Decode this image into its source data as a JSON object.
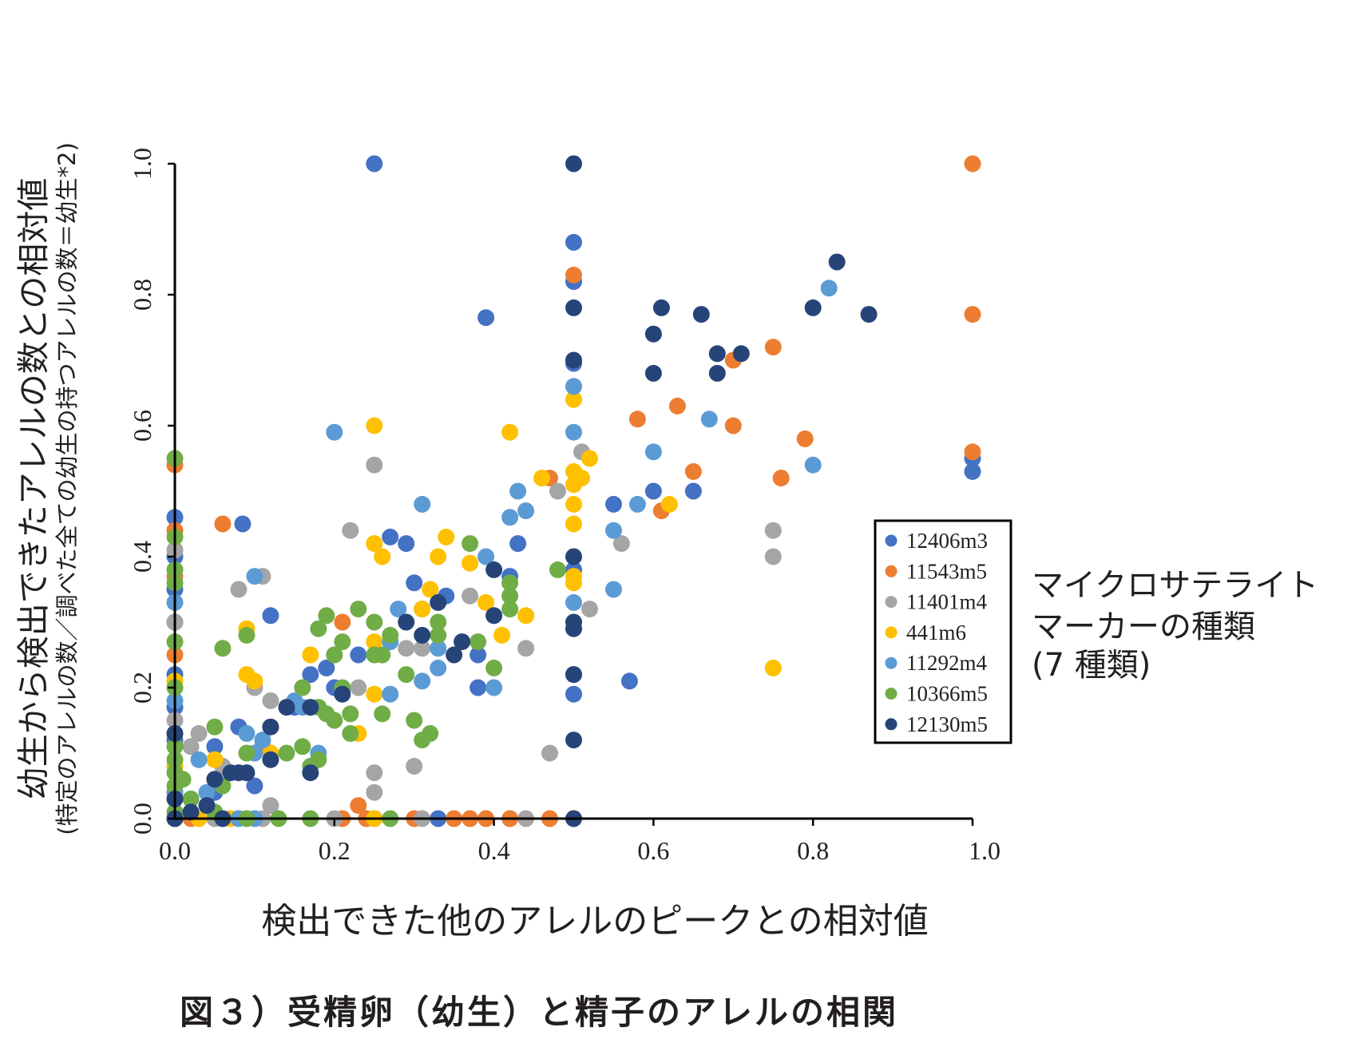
{
  "caption": "図３）受精卵（幼生）と精子のアレルの相関",
  "legend_title": [
    "マイクロサテライト",
    "マーカーの種類",
    "(7 種類)"
  ],
  "chart_data": {
    "type": "scatter",
    "xlabel": "検出できた他のアレルのピークとの相対値",
    "ylabel": "幼生から検出できたアレルの数との相対値",
    "ylabel_sub": "(特定のアレルの数／調べた全ての幼生の持つアレルの数＝幼生*2)",
    "xlim": [
      0.0,
      1.0
    ],
    "ylim": [
      0.0,
      1.0
    ],
    "xticks": [
      "0.0",
      "0.2",
      "0.4",
      "0.6",
      "0.8",
      "1.0"
    ],
    "yticks": [
      "0.0",
      "0.2",
      "0.4",
      "0.6",
      "0.8",
      "1.0"
    ],
    "grid": false,
    "legend_position": "right",
    "series": [
      {
        "name": "12406m3",
        "color": "#4472c4",
        "points": [
          [
            0.25,
            1.0
          ],
          [
            0.39,
            0.765
          ],
          [
            0.5,
            0.88
          ],
          [
            0.5,
            0.82
          ],
          [
            0.5,
            0.695
          ],
          [
            1.0,
            0.55
          ],
          [
            1.0,
            0.53
          ],
          [
            0.0,
            0.46
          ],
          [
            0.0,
            0.4
          ],
          [
            0.0,
            0.35
          ],
          [
            0.0,
            0.3
          ],
          [
            0.0,
            0.22
          ],
          [
            0.0,
            0.17
          ],
          [
            0.0,
            0.12
          ],
          [
            0.0,
            0.08
          ],
          [
            0.0,
            0.0
          ],
          [
            0.085,
            0.45
          ],
          [
            0.12,
            0.31
          ],
          [
            0.05,
            0.11
          ],
          [
            0.08,
            0.14
          ],
          [
            0.1,
            0.05
          ],
          [
            0.19,
            0.23
          ],
          [
            0.2,
            0.2
          ],
          [
            0.23,
            0.25
          ],
          [
            0.27,
            0.43
          ],
          [
            0.29,
            0.42
          ],
          [
            0.3,
            0.36
          ],
          [
            0.31,
            0.32
          ],
          [
            0.34,
            0.34
          ],
          [
            0.38,
            0.2
          ],
          [
            0.38,
            0.25
          ],
          [
            0.42,
            0.37
          ],
          [
            0.43,
            0.42
          ],
          [
            0.5,
            0.38
          ],
          [
            0.5,
            0.22
          ],
          [
            0.5,
            0.19
          ],
          [
            0.55,
            0.48
          ],
          [
            0.57,
            0.21
          ],
          [
            0.6,
            0.5
          ],
          [
            0.65,
            0.5
          ],
          [
            0.25,
            0.0
          ],
          [
            0.33,
            0.0
          ],
          [
            0.05,
            0.04
          ],
          [
            0.15,
            0.17
          ],
          [
            0.17,
            0.22
          ]
        ]
      },
      {
        "name": "11543m5",
        "color": "#ed7d31",
        "points": [
          [
            1.0,
            1.0
          ],
          [
            0.5,
            0.83
          ],
          [
            1.0,
            0.77
          ],
          [
            0.75,
            0.72
          ],
          [
            0.7,
            0.7
          ],
          [
            0.63,
            0.63
          ],
          [
            0.58,
            0.61
          ],
          [
            0.7,
            0.6
          ],
          [
            0.79,
            0.58
          ],
          [
            1.0,
            0.56
          ],
          [
            0.65,
            0.53
          ],
          [
            0.76,
            0.52
          ],
          [
            0.47,
            0.52
          ],
          [
            0.61,
            0.47
          ],
          [
            0.0,
            0.54
          ],
          [
            0.0,
            0.44
          ],
          [
            0.0,
            0.41
          ],
          [
            0.0,
            0.37
          ],
          [
            0.0,
            0.3
          ],
          [
            0.0,
            0.25
          ],
          [
            0.06,
            0.45
          ],
          [
            0.21,
            0.3
          ],
          [
            0.0,
            0.0
          ],
          [
            0.02,
            0.0
          ],
          [
            0.21,
            0.0
          ],
          [
            0.24,
            0.0
          ],
          [
            0.3,
            0.0
          ],
          [
            0.35,
            0.0
          ],
          [
            0.37,
            0.0
          ],
          [
            0.39,
            0.0
          ],
          [
            0.42,
            0.0
          ],
          [
            0.47,
            0.0
          ],
          [
            0.5,
            0.0
          ],
          [
            0.05,
            0.06
          ],
          [
            0.11,
            0.11
          ],
          [
            0.23,
            0.02
          ]
        ]
      },
      {
        "name": "11401m4",
        "color": "#a5a5a5",
        "points": [
          [
            0.25,
            0.54
          ],
          [
            0.51,
            0.56
          ],
          [
            0.48,
            0.5
          ],
          [
            0.56,
            0.42
          ],
          [
            0.75,
            0.44
          ],
          [
            0.75,
            0.4
          ],
          [
            0.52,
            0.32
          ],
          [
            0.44,
            0.26
          ],
          [
            0.37,
            0.34
          ],
          [
            0.29,
            0.26
          ],
          [
            0.31,
            0.26
          ],
          [
            0.22,
            0.44
          ],
          [
            0.08,
            0.35
          ],
          [
            0.11,
            0.37
          ],
          [
            0.1,
            0.2
          ],
          [
            0.12,
            0.18
          ],
          [
            0.03,
            0.13
          ],
          [
            0.02,
            0.11
          ],
          [
            0.05,
            0.09
          ],
          [
            0.23,
            0.2
          ],
          [
            0.25,
            0.07
          ],
          [
            0.25,
            0.04
          ],
          [
            0.3,
            0.08
          ],
          [
            0.47,
            0.1
          ],
          [
            0.0,
            0.41
          ],
          [
            0.0,
            0.3
          ],
          [
            0.0,
            0.15
          ],
          [
            0.0,
            0.0
          ],
          [
            0.05,
            0.0
          ],
          [
            0.11,
            0.0
          ],
          [
            0.2,
            0.0
          ],
          [
            0.31,
            0.0
          ],
          [
            0.44,
            0.0
          ],
          [
            0.12,
            0.02
          ],
          [
            0.06,
            0.08
          ]
        ]
      },
      {
        "name": "441m6",
        "color": "#ffc000",
        "points": [
          [
            0.25,
            0.6
          ],
          [
            0.42,
            0.59
          ],
          [
            0.5,
            0.64
          ],
          [
            0.5,
            0.53
          ],
          [
            0.5,
            0.51
          ],
          [
            0.5,
            0.48
          ],
          [
            0.5,
            0.45
          ],
          [
            0.5,
            0.37
          ],
          [
            0.5,
            0.36
          ],
          [
            0.52,
            0.55
          ],
          [
            0.51,
            0.52
          ],
          [
            0.62,
            0.48
          ],
          [
            0.46,
            0.52
          ],
          [
            0.34,
            0.43
          ],
          [
            0.33,
            0.4
          ],
          [
            0.37,
            0.39
          ],
          [
            0.32,
            0.35
          ],
          [
            0.25,
            0.42
          ],
          [
            0.26,
            0.4
          ],
          [
            0.39,
            0.33
          ],
          [
            0.41,
            0.28
          ],
          [
            0.44,
            0.31
          ],
          [
            0.75,
            0.23
          ],
          [
            0.17,
            0.25
          ],
          [
            0.09,
            0.29
          ],
          [
            0.09,
            0.22
          ],
          [
            0.1,
            0.21
          ],
          [
            0.23,
            0.13
          ],
          [
            0.25,
            0.19
          ],
          [
            0.12,
            0.1
          ],
          [
            0.05,
            0.09
          ],
          [
            0.0,
            0.21
          ],
          [
            0.0,
            0.13
          ],
          [
            0.0,
            0.08
          ],
          [
            0.0,
            0.04
          ],
          [
            0.0,
            0.0
          ],
          [
            0.03,
            0.0
          ],
          [
            0.07,
            0.0
          ],
          [
            0.25,
            0.0
          ],
          [
            0.31,
            0.32
          ],
          [
            0.25,
            0.27
          ]
        ]
      },
      {
        "name": "11292m4",
        "color": "#5b9bd5",
        "points": [
          [
            0.2,
            0.59
          ],
          [
            0.5,
            0.66
          ],
          [
            0.5,
            0.59
          ],
          [
            0.82,
            0.81
          ],
          [
            0.67,
            0.61
          ],
          [
            0.8,
            0.54
          ],
          [
            0.6,
            0.56
          ],
          [
            0.55,
            0.44
          ],
          [
            0.58,
            0.48
          ],
          [
            0.55,
            0.35
          ],
          [
            0.5,
            0.33
          ],
          [
            0.42,
            0.46
          ],
          [
            0.44,
            0.47
          ],
          [
            0.43,
            0.5
          ],
          [
            0.31,
            0.48
          ],
          [
            0.4,
            0.2
          ],
          [
            0.39,
            0.4
          ],
          [
            0.27,
            0.27
          ],
          [
            0.27,
            0.19
          ],
          [
            0.31,
            0.21
          ],
          [
            0.33,
            0.23
          ],
          [
            0.28,
            0.32
          ],
          [
            0.2,
            0.25
          ],
          [
            0.16,
            0.17
          ],
          [
            0.15,
            0.18
          ],
          [
            0.1,
            0.37
          ],
          [
            0.11,
            0.12
          ],
          [
            0.1,
            0.1
          ],
          [
            0.09,
            0.13
          ],
          [
            0.03,
            0.09
          ],
          [
            0.02,
            0.03
          ],
          [
            0.0,
            0.33
          ],
          [
            0.0,
            0.18
          ],
          [
            0.0,
            0.04
          ],
          [
            0.0,
            0.0
          ],
          [
            0.04,
            0.04
          ],
          [
            0.08,
            0.0
          ],
          [
            0.1,
            0.0
          ],
          [
            0.18,
            0.1
          ],
          [
            0.33,
            0.26
          ]
        ]
      },
      {
        "name": "10366m5",
        "color": "#70ad47",
        "points": [
          [
            0.0,
            0.55
          ],
          [
            0.0,
            0.43
          ],
          [
            0.0,
            0.38
          ],
          [
            0.0,
            0.36
          ],
          [
            0.0,
            0.27
          ],
          [
            0.0,
            0.2
          ],
          [
            0.0,
            0.11
          ],
          [
            0.0,
            0.07
          ],
          [
            0.0,
            0.05
          ],
          [
            0.0,
            0.01
          ],
          [
            0.0,
            0.0
          ],
          [
            0.48,
            0.38
          ],
          [
            0.37,
            0.42
          ],
          [
            0.42,
            0.32
          ],
          [
            0.38,
            0.27
          ],
          [
            0.4,
            0.23
          ],
          [
            0.33,
            0.3
          ],
          [
            0.33,
            0.28
          ],
          [
            0.29,
            0.22
          ],
          [
            0.25,
            0.3
          ],
          [
            0.27,
            0.28
          ],
          [
            0.25,
            0.25
          ],
          [
            0.23,
            0.32
          ],
          [
            0.19,
            0.31
          ],
          [
            0.2,
            0.25
          ],
          [
            0.18,
            0.29
          ],
          [
            0.16,
            0.2
          ],
          [
            0.18,
            0.17
          ],
          [
            0.19,
            0.16
          ],
          [
            0.21,
            0.2
          ],
          [
            0.22,
            0.16
          ],
          [
            0.2,
            0.15
          ],
          [
            0.22,
            0.13
          ],
          [
            0.26,
            0.16
          ],
          [
            0.3,
            0.15
          ],
          [
            0.32,
            0.13
          ],
          [
            0.31,
            0.12
          ],
          [
            0.14,
            0.1
          ],
          [
            0.16,
            0.11
          ],
          [
            0.17,
            0.08
          ],
          [
            0.18,
            0.09
          ],
          [
            0.09,
            0.28
          ],
          [
            0.06,
            0.26
          ],
          [
            0.05,
            0.14
          ],
          [
            0.06,
            0.05
          ],
          [
            0.09,
            0.1
          ],
          [
            0.02,
            0.03
          ],
          [
            0.01,
            0.06
          ],
          [
            0.0,
            0.09
          ],
          [
            0.05,
            0.01
          ],
          [
            0.09,
            0.0
          ],
          [
            0.13,
            0.0
          ],
          [
            0.17,
            0.0
          ],
          [
            0.27,
            0.0
          ],
          [
            0.42,
            0.34
          ],
          [
            0.42,
            0.36
          ],
          [
            0.21,
            0.27
          ],
          [
            0.26,
            0.25
          ]
        ]
      },
      {
        "name": "12130m5",
        "color": "#264478",
        "points": [
          [
            0.5,
            1.0
          ],
          [
            0.5,
            0.78
          ],
          [
            0.5,
            0.7
          ],
          [
            0.87,
            0.77
          ],
          [
            0.83,
            0.85
          ],
          [
            0.8,
            0.78
          ],
          [
            0.66,
            0.77
          ],
          [
            0.61,
            0.78
          ],
          [
            0.6,
            0.74
          ],
          [
            0.6,
            0.68
          ],
          [
            0.68,
            0.71
          ],
          [
            0.68,
            0.68
          ],
          [
            0.71,
            0.71
          ],
          [
            0.5,
            0.4
          ],
          [
            0.5,
            0.3
          ],
          [
            0.5,
            0.29
          ],
          [
            0.5,
            0.22
          ],
          [
            0.5,
            0.12
          ],
          [
            0.4,
            0.31
          ],
          [
            0.4,
            0.38
          ],
          [
            0.33,
            0.33
          ],
          [
            0.35,
            0.25
          ],
          [
            0.36,
            0.27
          ],
          [
            0.29,
            0.3
          ],
          [
            0.31,
            0.28
          ],
          [
            0.21,
            0.19
          ],
          [
            0.17,
            0.17
          ],
          [
            0.12,
            0.14
          ],
          [
            0.12,
            0.09
          ],
          [
            0.09,
            0.07
          ],
          [
            0.08,
            0.07
          ],
          [
            0.07,
            0.07
          ],
          [
            0.05,
            0.06
          ],
          [
            0.04,
            0.02
          ],
          [
            0.02,
            0.01
          ],
          [
            0.0,
            0.13
          ],
          [
            0.0,
            0.03
          ],
          [
            0.0,
            0.0
          ],
          [
            0.06,
            0.0
          ],
          [
            0.17,
            0.07
          ],
          [
            0.14,
            0.17
          ],
          [
            0.5,
            0.0
          ]
        ]
      }
    ]
  }
}
